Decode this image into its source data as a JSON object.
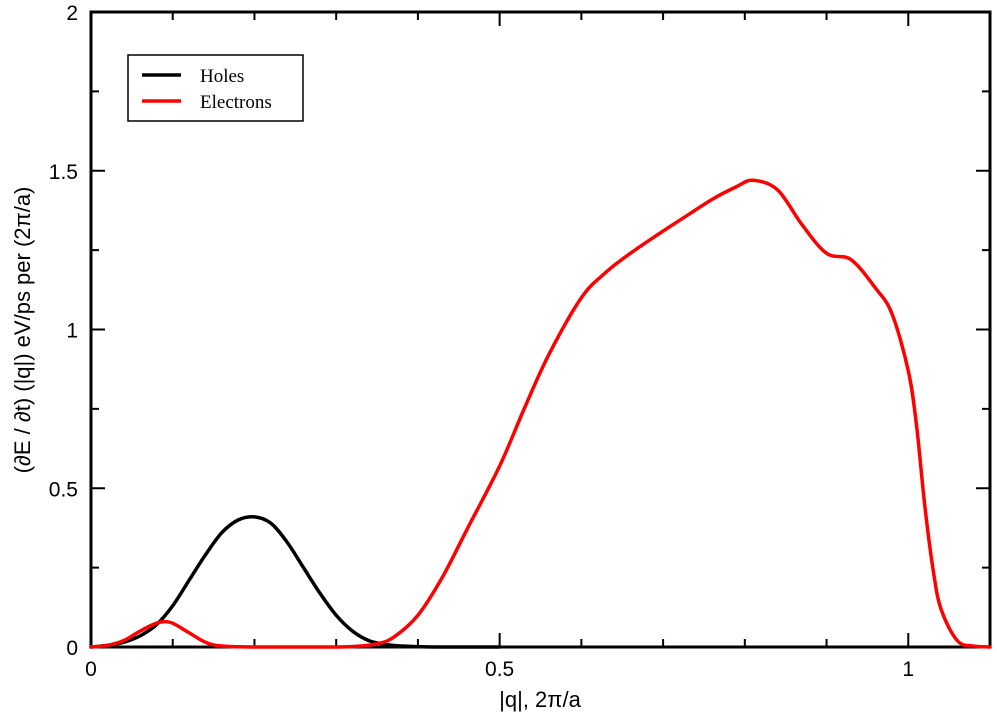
{
  "chart_data": {
    "type": "line",
    "title": "",
    "xlabel": "|q|, 2π/a",
    "ylabel": "(∂E / ∂t) (|q|)  eV/ps per (2π/a)",
    "xlim": [
      0,
      1.1
    ],
    "ylim": [
      0,
      2
    ],
    "x_ticks": [
      {
        "value": 0,
        "label": "0"
      },
      {
        "value": 0.5,
        "label": "0.5"
      },
      {
        "value": 1,
        "label": "1"
      }
    ],
    "y_ticks": [
      {
        "value": 0,
        "label": "0"
      },
      {
        "value": 0.5,
        "label": "0.5"
      },
      {
        "value": 1,
        "label": "1"
      },
      {
        "value": 1.5,
        "label": "1.5"
      },
      {
        "value": 2,
        "label": "2"
      }
    ],
    "grid": false,
    "legend_position": "top-left",
    "series": [
      {
        "name": "Holes",
        "color": "#000000",
        "x": [
          0,
          0.02,
          0.04,
          0.06,
          0.08,
          0.1,
          0.12,
          0.14,
          0.16,
          0.18,
          0.2,
          0.22,
          0.24,
          0.26,
          0.28,
          0.3,
          0.32,
          0.34,
          0.36,
          0.38,
          0.4,
          0.42,
          0.45,
          0.5
        ],
        "y": [
          0,
          0.005,
          0.015,
          0.035,
          0.07,
          0.13,
          0.21,
          0.29,
          0.36,
          0.4,
          0.41,
          0.39,
          0.33,
          0.25,
          0.17,
          0.1,
          0.05,
          0.02,
          0.008,
          0.003,
          0.001,
          0,
          0,
          0
        ]
      },
      {
        "name": "Electrons",
        "color": "#ff0000",
        "x": [
          0,
          0.02,
          0.04,
          0.06,
          0.08,
          0.09,
          0.1,
          0.12,
          0.14,
          0.16,
          0.2,
          0.3,
          0.33,
          0.35,
          0.37,
          0.4,
          0.43,
          0.46,
          0.5,
          0.53,
          0.56,
          0.6,
          0.63,
          0.66,
          0.7,
          0.73,
          0.76,
          0.79,
          0.81,
          0.84,
          0.87,
          0.9,
          0.93,
          0.96,
          0.98,
          1.0,
          1.01,
          1.02,
          1.03,
          1.04,
          1.06,
          1.08,
          1.1
        ],
        "y": [
          0,
          0.005,
          0.02,
          0.05,
          0.075,
          0.08,
          0.075,
          0.045,
          0.015,
          0.003,
          0,
          0,
          0.003,
          0.01,
          0.03,
          0.1,
          0.22,
          0.37,
          0.57,
          0.75,
          0.92,
          1.1,
          1.18,
          1.24,
          1.31,
          1.36,
          1.41,
          1.45,
          1.47,
          1.44,
          1.33,
          1.24,
          1.22,
          1.13,
          1.05,
          0.87,
          0.7,
          0.45,
          0.25,
          0.12,
          0.02,
          0.003,
          0
        ]
      }
    ]
  }
}
